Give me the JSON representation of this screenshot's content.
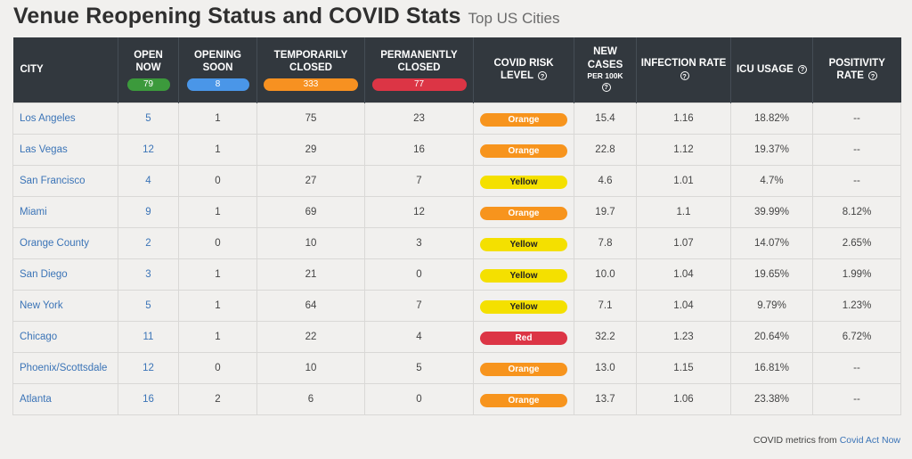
{
  "header": {
    "title": "Venue Reopening Status and COVID Stats",
    "subtitle": "Top US Cities"
  },
  "columns": {
    "city": "CITY",
    "open_now": "OPEN NOW",
    "opening_soon": "OPENING SOON",
    "temporarily_closed": "TEMPORARILY CLOSED",
    "permanently_closed": "PERMANENTLY CLOSED",
    "risk_level": "COVID RISK LEVEL",
    "new_cases": "NEW CASES",
    "new_cases_sub": "PER 100K",
    "infection_rate": "INFECTION RATE",
    "icu_usage": "ICU USAGE",
    "positivity_rate": "POSITIVITY RATE",
    "help_glyph": "?"
  },
  "totals": {
    "open_now": "79",
    "opening_soon": "8",
    "temporarily_closed": "333",
    "permanently_closed": "77"
  },
  "risk_colors": {
    "Orange": "#f7941d",
    "Yellow": "#f4e000",
    "Red": "#dc3545"
  },
  "rows": [
    {
      "city": "Los Angeles",
      "open": "5",
      "soon": "1",
      "temp": "75",
      "perm": "23",
      "risk": "Orange",
      "cases": "15.4",
      "infection": "1.16",
      "icu": "18.82%",
      "positivity": "--"
    },
    {
      "city": "Las Vegas",
      "open": "12",
      "soon": "1",
      "temp": "29",
      "perm": "16",
      "risk": "Orange",
      "cases": "22.8",
      "infection": "1.12",
      "icu": "19.37%",
      "positivity": "--"
    },
    {
      "city": "San Francisco",
      "open": "4",
      "soon": "0",
      "temp": "27",
      "perm": "7",
      "risk": "Yellow",
      "cases": "4.6",
      "infection": "1.01",
      "icu": "4.7%",
      "positivity": "--"
    },
    {
      "city": "Miami",
      "open": "9",
      "soon": "1",
      "temp": "69",
      "perm": "12",
      "risk": "Orange",
      "cases": "19.7",
      "infection": "1.1",
      "icu": "39.99%",
      "positivity": "8.12%"
    },
    {
      "city": "Orange County",
      "open": "2",
      "soon": "0",
      "temp": "10",
      "perm": "3",
      "risk": "Yellow",
      "cases": "7.8",
      "infection": "1.07",
      "icu": "14.07%",
      "positivity": "2.65%"
    },
    {
      "city": "San Diego",
      "open": "3",
      "soon": "1",
      "temp": "21",
      "perm": "0",
      "risk": "Yellow",
      "cases": "10.0",
      "infection": "1.04",
      "icu": "19.65%",
      "positivity": "1.99%"
    },
    {
      "city": "New York",
      "open": "5",
      "soon": "1",
      "temp": "64",
      "perm": "7",
      "risk": "Yellow",
      "cases": "7.1",
      "infection": "1.04",
      "icu": "9.79%",
      "positivity": "1.23%"
    },
    {
      "city": "Chicago",
      "open": "11",
      "soon": "1",
      "temp": "22",
      "perm": "4",
      "risk": "Red",
      "cases": "32.2",
      "infection": "1.23",
      "icu": "20.64%",
      "positivity": "6.72%"
    },
    {
      "city": "Phoenix/Scottsdale",
      "open": "12",
      "soon": "0",
      "temp": "10",
      "perm": "5",
      "risk": "Orange",
      "cases": "13.0",
      "infection": "1.15",
      "icu": "16.81%",
      "positivity": "--"
    },
    {
      "city": "Atlanta",
      "open": "16",
      "soon": "2",
      "temp": "6",
      "perm": "0",
      "risk": "Orange",
      "cases": "13.7",
      "infection": "1.06",
      "icu": "23.38%",
      "positivity": "--"
    }
  ],
  "footer": {
    "text": "COVID metrics from",
    "link": "Covid Act Now"
  }
}
